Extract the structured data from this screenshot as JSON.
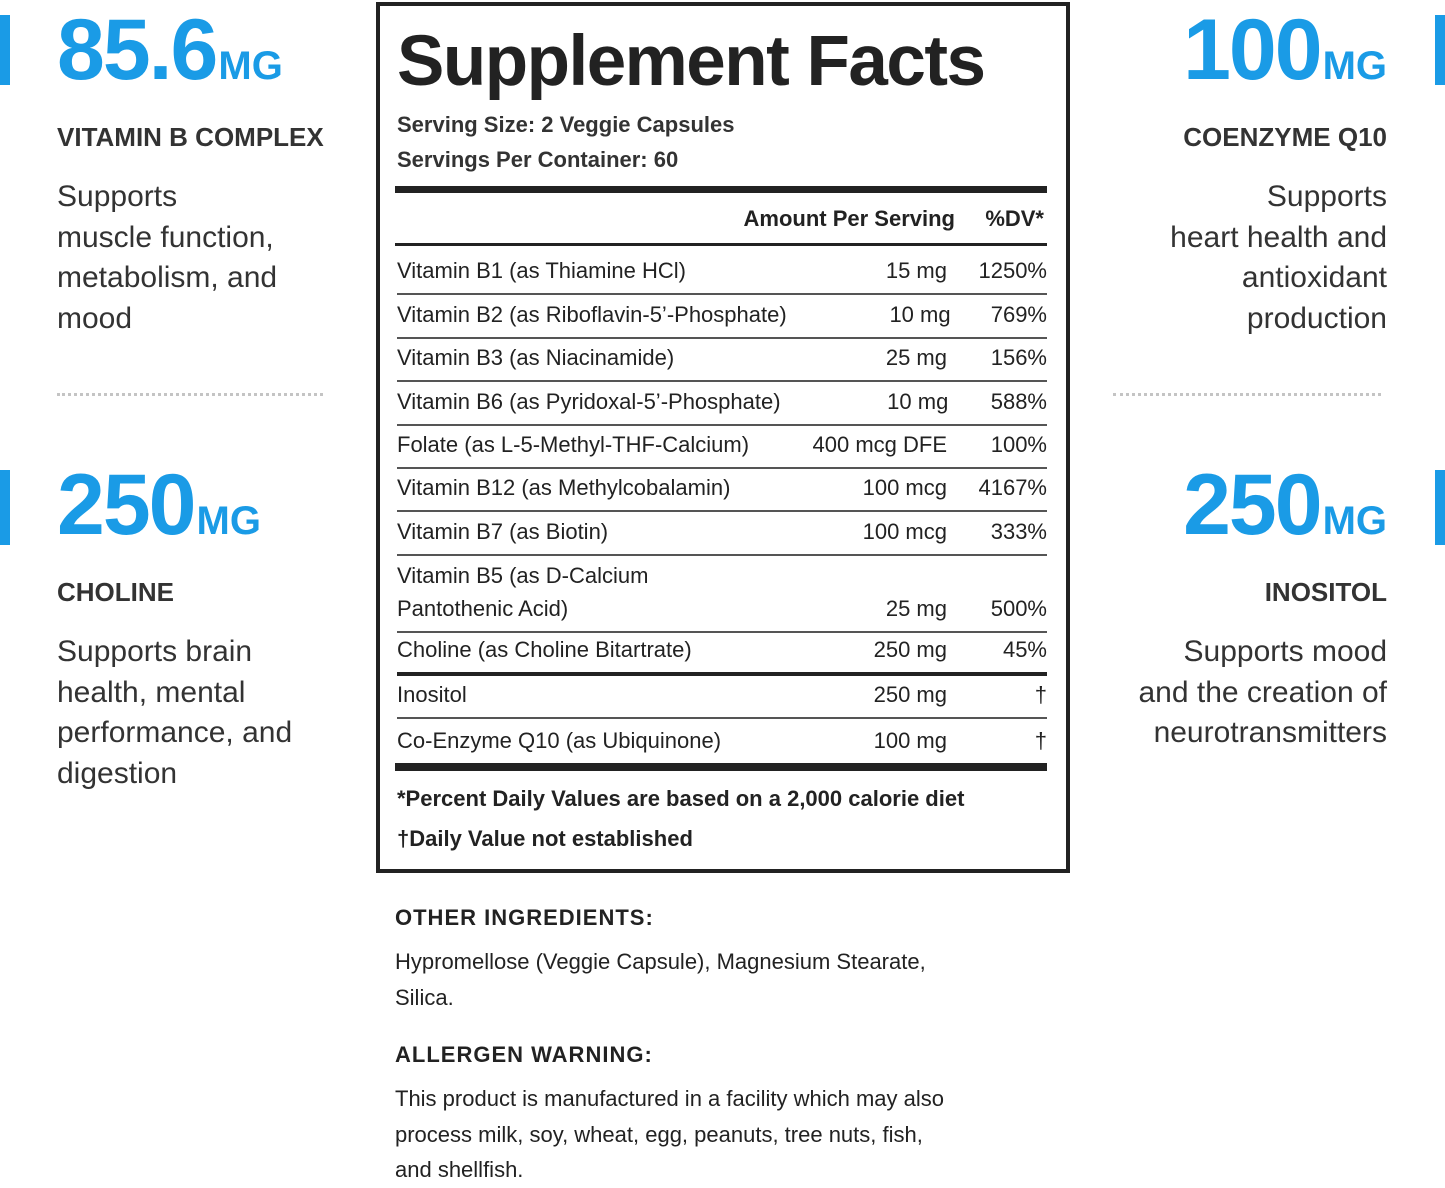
{
  "left_highlights": [
    {
      "amount": "85.6",
      "unit": "MG",
      "name": "VITAMIN B COMPLEX",
      "description": [
        "Supports",
        "muscle function,",
        "metabolism, and",
        "mood"
      ]
    },
    {
      "amount": "250",
      "unit": "MG",
      "name": "CHOLINE",
      "description": [
        "Supports brain",
        "health, mental",
        "performance, and",
        "digestion"
      ]
    }
  ],
  "right_highlights": [
    {
      "amount": "100",
      "unit": "MG",
      "name": "COENZYME Q10",
      "description": [
        "Supports",
        "heart health and",
        "antioxidant",
        "production"
      ]
    },
    {
      "amount": "250",
      "unit": "MG",
      "name": "INOSITOL",
      "description": [
        "Supports mood",
        "and the creation of",
        "neurotransmitters"
      ]
    }
  ],
  "supplement_facts": {
    "title": "Supplement Facts",
    "serving_size": "Serving Size: 2 Veggie Capsules",
    "servings_per_container": "Servings Per Container: 60",
    "header": [
      "Amount Per Serving",
      "%DV*"
    ],
    "rows": [
      {
        "name": [
          "Vitamin B1 (as Thiamine HCl)"
        ],
        "amount": "15 mg",
        "dv": "1250%"
      },
      {
        "name": [
          "Vitamin B2 (as Riboflavin-5’-Phosphate)"
        ],
        "amount": "10 mg",
        "dv": "769%"
      },
      {
        "name": [
          "Vitamin B3 (as Niacinamide)"
        ],
        "amount": "25 mg",
        "dv": "156%"
      },
      {
        "name": [
          "Vitamin B6 (as Pyridoxal-5’-Phosphate)"
        ],
        "amount": "10 mg",
        "dv": "588%"
      },
      {
        "name": [
          "Folate (as L-5-Methyl-THF-Calcium)"
        ],
        "amount": "400 mcg DFE",
        "dv": "100%"
      },
      {
        "name": [
          "Vitamin B12 (as Methylcobalamin)"
        ],
        "amount": "100 mcg",
        "dv": "4167%"
      },
      {
        "name": [
          "Vitamin B7 (as Biotin)"
        ],
        "amount": "100 mcg",
        "dv": "333%"
      },
      {
        "name": [
          "Vitamin B5 (as D-Calcium",
          "Pantothenic Acid)"
        ],
        "amount": "25 mg",
        "dv": "500%"
      },
      {
        "name": [
          "Choline (as Choline Bitartrate)"
        ],
        "amount": "250 mg",
        "dv": "45%"
      },
      {
        "name": [
          "Inositol"
        ],
        "amount": "250 mg",
        "dv": "†"
      },
      {
        "name": [
          "Co-Enzyme Q10 (as Ubiquinone)"
        ],
        "amount": "100 mg",
        "dv": "†"
      }
    ],
    "footnotes": [
      "*Percent Daily Values are based on a 2,000 calorie diet",
      "†Daily Value not established"
    ]
  },
  "other_ingredients": {
    "heading": "OTHER INGREDIENTS:",
    "text": [
      "Hypromellose (Veggie Capsule), Magnesium Stearate,",
      "Silica."
    ]
  },
  "allergen_warning": {
    "heading": "ALLERGEN WARNING:",
    "text": [
      "This product is manufactured in a facility which may also",
      "process milk, soy, wheat, egg, peanuts, tree nuts, fish,",
      "and shellfish."
    ]
  }
}
